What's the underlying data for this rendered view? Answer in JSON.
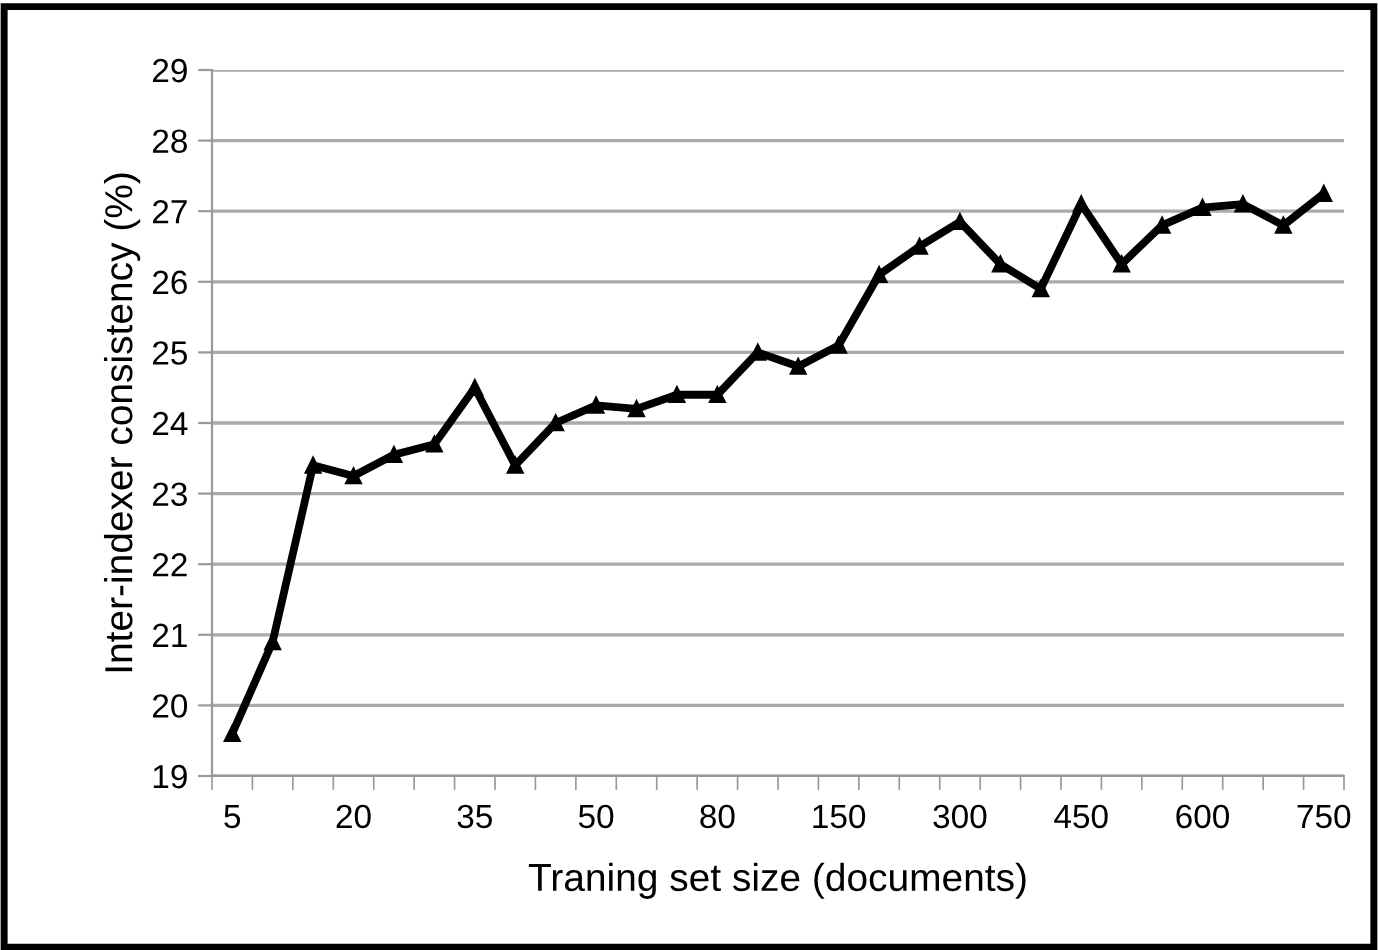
{
  "chart_data": {
    "type": "line",
    "xlabel": "Traning set size (documents)",
    "ylabel": "Inter-indexer consistency (%)",
    "categories": [
      "5",
      null,
      null,
      "20",
      null,
      null,
      "35",
      null,
      null,
      "50",
      null,
      null,
      "80",
      null,
      null,
      "150",
      null,
      null,
      "300",
      null,
      null,
      "450",
      null,
      null,
      "600",
      null,
      null,
      "750"
    ],
    "series": [
      {
        "color": "#000000",
        "values": [
          19.6,
          20.9,
          23.4,
          23.25,
          23.55,
          23.7,
          24.5,
          23.4,
          24.0,
          24.25,
          24.2,
          24.4,
          24.4,
          25.0,
          24.8,
          25.1,
          26.1,
          26.5,
          26.85,
          26.25,
          25.9,
          27.1,
          26.25,
          26.8,
          27.05,
          27.1,
          26.8,
          27.25
        ]
      }
    ],
    "ylim": [
      19,
      29
    ],
    "yticks": [
      19,
      20,
      21,
      22,
      23,
      24,
      25,
      26,
      27,
      28,
      29
    ],
    "grid": "y",
    "marker": "triangle",
    "line_style": "solid"
  }
}
